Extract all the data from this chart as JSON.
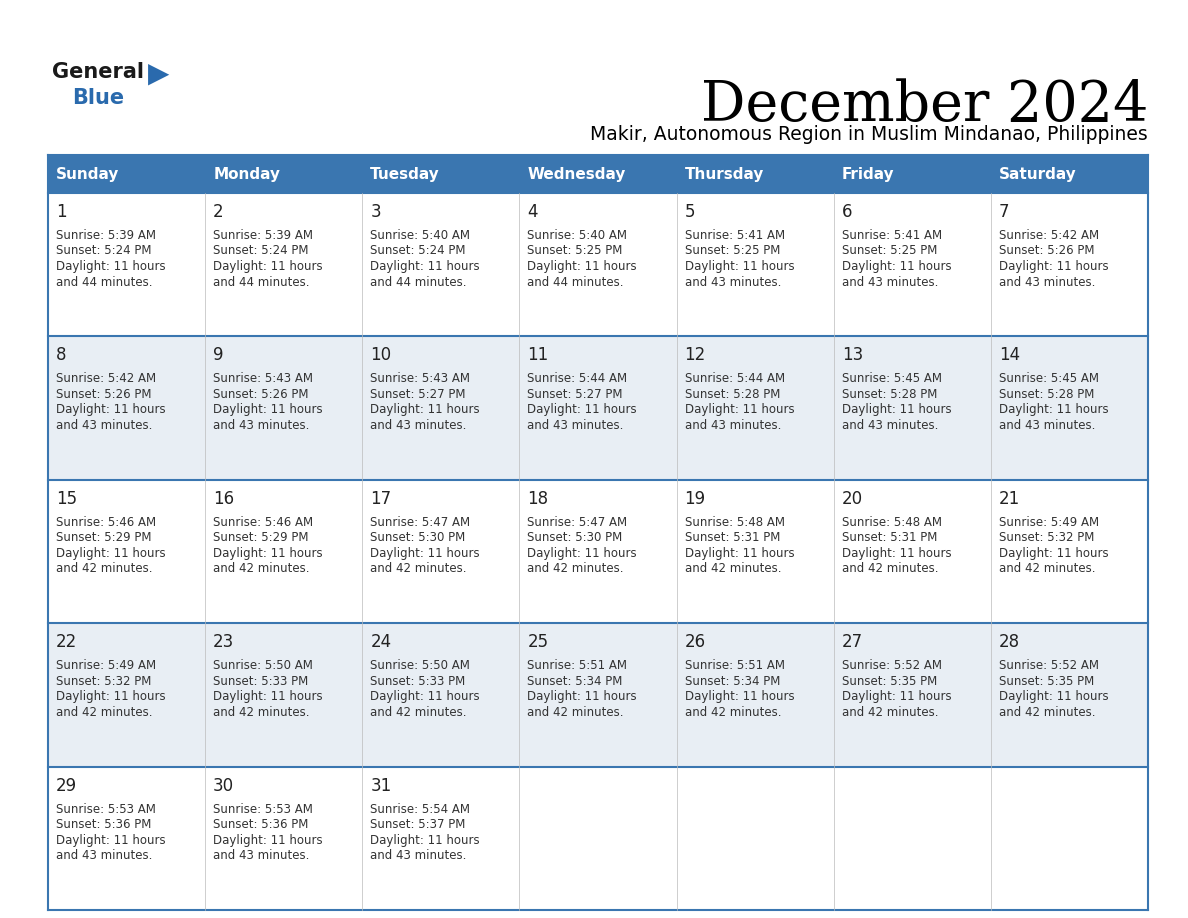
{
  "title": "December 2024",
  "subtitle": "Makir, Autonomous Region in Muslim Mindanao, Philippines",
  "days_of_week": [
    "Sunday",
    "Monday",
    "Tuesday",
    "Wednesday",
    "Thursday",
    "Friday",
    "Saturday"
  ],
  "header_bg": "#3A76B0",
  "header_text": "#FFFFFF",
  "row_bg_odd": "#FFFFFF",
  "row_bg_even": "#E8EEF4",
  "border_color_strong": "#3A76B0",
  "border_color_light": "#BBBBBB",
  "day_num_color": "#222222",
  "text_color": "#333333",
  "logo_text_color": "#1a1a1a",
  "logo_blue_color": "#2a6aad",
  "calendar": [
    [
      {
        "day": 1,
        "sunrise": "5:39 AM",
        "sunset": "5:24 PM",
        "daylight": "11 hours and 44 minutes"
      },
      {
        "day": 2,
        "sunrise": "5:39 AM",
        "sunset": "5:24 PM",
        "daylight": "11 hours and 44 minutes"
      },
      {
        "day": 3,
        "sunrise": "5:40 AM",
        "sunset": "5:24 PM",
        "daylight": "11 hours and 44 minutes"
      },
      {
        "day": 4,
        "sunrise": "5:40 AM",
        "sunset": "5:25 PM",
        "daylight": "11 hours and 44 minutes"
      },
      {
        "day": 5,
        "sunrise": "5:41 AM",
        "sunset": "5:25 PM",
        "daylight": "11 hours and 43 minutes"
      },
      {
        "day": 6,
        "sunrise": "5:41 AM",
        "sunset": "5:25 PM",
        "daylight": "11 hours and 43 minutes"
      },
      {
        "day": 7,
        "sunrise": "5:42 AM",
        "sunset": "5:26 PM",
        "daylight": "11 hours and 43 minutes"
      }
    ],
    [
      {
        "day": 8,
        "sunrise": "5:42 AM",
        "sunset": "5:26 PM",
        "daylight": "11 hours and 43 minutes"
      },
      {
        "day": 9,
        "sunrise": "5:43 AM",
        "sunset": "5:26 PM",
        "daylight": "11 hours and 43 minutes"
      },
      {
        "day": 10,
        "sunrise": "5:43 AM",
        "sunset": "5:27 PM",
        "daylight": "11 hours and 43 minutes"
      },
      {
        "day": 11,
        "sunrise": "5:44 AM",
        "sunset": "5:27 PM",
        "daylight": "11 hours and 43 minutes"
      },
      {
        "day": 12,
        "sunrise": "5:44 AM",
        "sunset": "5:28 PM",
        "daylight": "11 hours and 43 minutes"
      },
      {
        "day": 13,
        "sunrise": "5:45 AM",
        "sunset": "5:28 PM",
        "daylight": "11 hours and 43 minutes"
      },
      {
        "day": 14,
        "sunrise": "5:45 AM",
        "sunset": "5:28 PM",
        "daylight": "11 hours and 43 minutes"
      }
    ],
    [
      {
        "day": 15,
        "sunrise": "5:46 AM",
        "sunset": "5:29 PM",
        "daylight": "11 hours and 42 minutes"
      },
      {
        "day": 16,
        "sunrise": "5:46 AM",
        "sunset": "5:29 PM",
        "daylight": "11 hours and 42 minutes"
      },
      {
        "day": 17,
        "sunrise": "5:47 AM",
        "sunset": "5:30 PM",
        "daylight": "11 hours and 42 minutes"
      },
      {
        "day": 18,
        "sunrise": "5:47 AM",
        "sunset": "5:30 PM",
        "daylight": "11 hours and 42 minutes"
      },
      {
        "day": 19,
        "sunrise": "5:48 AM",
        "sunset": "5:31 PM",
        "daylight": "11 hours and 42 minutes"
      },
      {
        "day": 20,
        "sunrise": "5:48 AM",
        "sunset": "5:31 PM",
        "daylight": "11 hours and 42 minutes"
      },
      {
        "day": 21,
        "sunrise": "5:49 AM",
        "sunset": "5:32 PM",
        "daylight": "11 hours and 42 minutes"
      }
    ],
    [
      {
        "day": 22,
        "sunrise": "5:49 AM",
        "sunset": "5:32 PM",
        "daylight": "11 hours and 42 minutes"
      },
      {
        "day": 23,
        "sunrise": "5:50 AM",
        "sunset": "5:33 PM",
        "daylight": "11 hours and 42 minutes"
      },
      {
        "day": 24,
        "sunrise": "5:50 AM",
        "sunset": "5:33 PM",
        "daylight": "11 hours and 42 minutes"
      },
      {
        "day": 25,
        "sunrise": "5:51 AM",
        "sunset": "5:34 PM",
        "daylight": "11 hours and 42 minutes"
      },
      {
        "day": 26,
        "sunrise": "5:51 AM",
        "sunset": "5:34 PM",
        "daylight": "11 hours and 42 minutes"
      },
      {
        "day": 27,
        "sunrise": "5:52 AM",
        "sunset": "5:35 PM",
        "daylight": "11 hours and 42 minutes"
      },
      {
        "day": 28,
        "sunrise": "5:52 AM",
        "sunset": "5:35 PM",
        "daylight": "11 hours and 42 minutes"
      }
    ],
    [
      {
        "day": 29,
        "sunrise": "5:53 AM",
        "sunset": "5:36 PM",
        "daylight": "11 hours and 43 minutes"
      },
      {
        "day": 30,
        "sunrise": "5:53 AM",
        "sunset": "5:36 PM",
        "daylight": "11 hours and 43 minutes"
      },
      {
        "day": 31,
        "sunrise": "5:54 AM",
        "sunset": "5:37 PM",
        "daylight": "11 hours and 43 minutes"
      },
      null,
      null,
      null,
      null
    ]
  ]
}
